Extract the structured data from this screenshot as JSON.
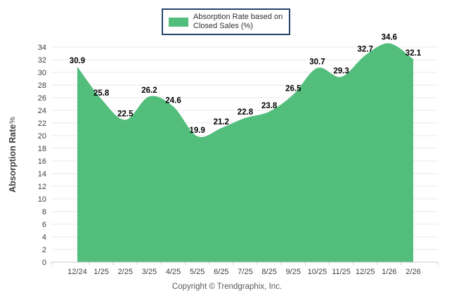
{
  "legend": {
    "line1": "Absorption Rate based on",
    "line2": "Closed Sales (%)"
  },
  "y_axis": {
    "title": "Absorption Rate",
    "unit": "%"
  },
  "footer": {
    "copyright": "Copyright © Trendgraphix, Inc."
  },
  "colors": {
    "area": "#53BE7C",
    "legend_border": "#25456B",
    "gridline": "#E9E9E9",
    "axis_line": "#C8C8C8",
    "tick_label": "#404040",
    "data_label": "#000000"
  },
  "chart_data": {
    "type": "area",
    "title": "Absorption Rate based on Closed Sales (%)",
    "categories": [
      "12/24",
      "1/25",
      "2/25",
      "3/25",
      "4/25",
      "5/25",
      "6/25",
      "7/25",
      "8/25",
      "9/25",
      "10/25",
      "11/25",
      "12/25",
      "1/26",
      "2/26"
    ],
    "values": [
      30.9,
      25.8,
      22.5,
      26.2,
      24.6,
      19.9,
      21.2,
      22.8,
      23.8,
      26.5,
      30.7,
      29.3,
      32.7,
      34.6,
      32.1
    ],
    "xlabel": "",
    "ylabel": "Absorption Rate%",
    "ylim": [
      0,
      34
    ],
    "ytick_step": 2,
    "grid": "horizontal",
    "legend_position": "top-center",
    "smooth": true,
    "data_labels": true
  }
}
